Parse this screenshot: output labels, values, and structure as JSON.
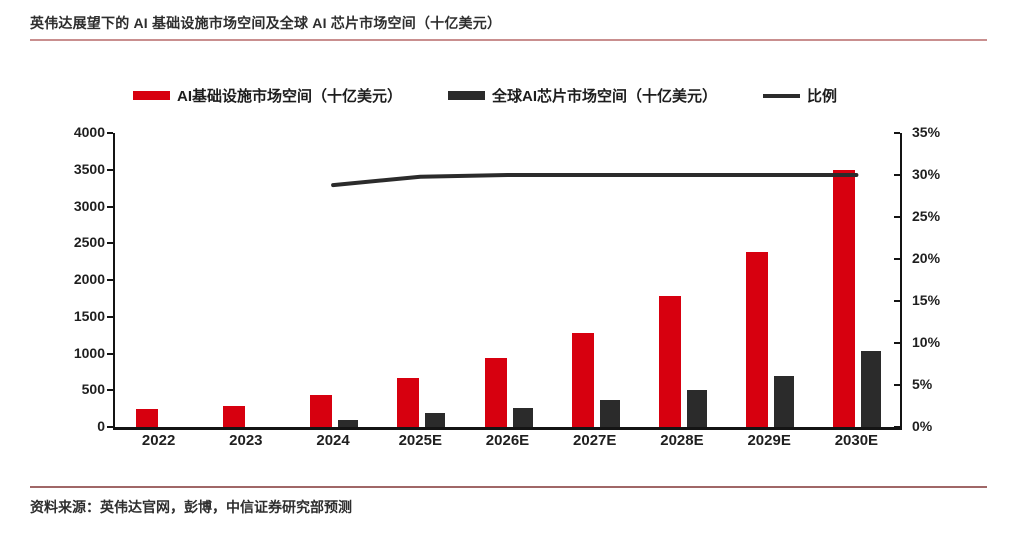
{
  "page": {
    "title": "英伟达展望下的 AI 基础设施市场空间及全球 AI 芯片市场空间（十亿美元）",
    "source": "资料来源：英伟达官网，彭博，中信证券研究部预测"
  },
  "colors": {
    "infra_bar": "#d7000f",
    "chip_bar": "#2b2b2b",
    "ratio_line": "#2b2b2b",
    "axis": "#141414",
    "title_rule": "#c98f8f",
    "source_rule": "#a06767",
    "text": "#1f1f1f"
  },
  "chart_data": {
    "type": "bar",
    "title": "英伟达展望下的 AI 基础设施市场空间及全球 AI 芯片市场空间（十亿美元）",
    "categories": [
      "2022",
      "2023",
      "2024",
      "2025E",
      "2026E",
      "2027E",
      "2028E",
      "2029E",
      "2030E"
    ],
    "series": [
      {
        "name": "AI基础设施市场空间（十亿美元）",
        "type": "bar",
        "axis": "left",
        "color_key": "infra_bar",
        "values": [
          250,
          290,
          430,
          670,
          940,
          1280,
          1780,
          2380,
          3500
        ]
      },
      {
        "name": "全球AI芯片市场空间（十亿美元）",
        "type": "bar",
        "axis": "left",
        "color_key": "chip_bar",
        "values": [
          null,
          null,
          100,
          190,
          260,
          370,
          510,
          700,
          1030
        ]
      },
      {
        "name": "比例",
        "type": "line",
        "axis": "right",
        "color_key": "ratio_line",
        "values": [
          null,
          null,
          28.8,
          29.8,
          30,
          30,
          30,
          30,
          30
        ]
      }
    ],
    "left_axis": {
      "min": 0,
      "max": 4000,
      "step": 500,
      "tick_labels_top_to_bottom": [
        "4000",
        "3500",
        "3000",
        "2500",
        "2000",
        "1500",
        "1000",
        "500",
        "0"
      ]
    },
    "right_axis": {
      "min": 0,
      "max": 35,
      "step": 5,
      "unit": "%",
      "tick_labels_top_to_bottom": [
        "35%",
        "30%",
        "25%",
        "20%",
        "15%",
        "10%",
        "5%",
        "0%"
      ]
    },
    "legend": [
      {
        "label": "AI基础设施市场空间（十亿美元）",
        "swatch": "bar",
        "color_key": "infra_bar"
      },
      {
        "label": "全球AI芯片市场空间（十亿美元）",
        "swatch": "bar",
        "color_key": "chip_bar"
      },
      {
        "label": "比例",
        "swatch": "line",
        "color_key": "ratio_line"
      }
    ],
    "grid": false,
    "legend_position": "top"
  }
}
